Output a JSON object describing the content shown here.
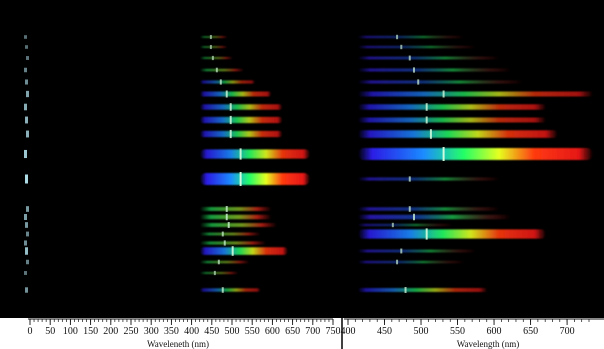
{
  "chart_data": [
    {
      "type": "spectra-image",
      "panel": "left",
      "xlabel": "Waveleneth (nm)",
      "xlim": [
        0,
        750
      ],
      "ticks": [
        0,
        50,
        100,
        150,
        200,
        250,
        300,
        350,
        400,
        450,
        500,
        550,
        600,
        650,
        700,
        750
      ]
    },
    {
      "type": "spectra-image",
      "panel": "right",
      "xlabel": "Wavelength (nm)",
      "xlim": [
        400,
        730
      ],
      "ticks": [
        400,
        450,
        500,
        550,
        600,
        650,
        700
      ]
    }
  ],
  "colors": {
    "background": "#000000",
    "axis_background": "#ffffff",
    "axis_ink": "#111111",
    "blue": "#2a1cff",
    "green": "#22ff66",
    "red": "#ff1a1a",
    "zero_order": "#bff3ff"
  },
  "left_bands": [
    {
      "i": 0.1,
      "w": 0.25,
      "c": "gr"
    },
    {
      "i": 0.1,
      "w": 0.25,
      "c": "gr"
    },
    {
      "i": 0.15,
      "w": 0.3,
      "c": "gr"
    },
    {
      "i": 0.25,
      "w": 0.4,
      "c": "gr"
    },
    {
      "i": 0.35,
      "w": 0.5,
      "c": "bgr"
    },
    {
      "i": 0.55,
      "w": 0.65,
      "c": "bgr"
    },
    {
      "i": 0.6,
      "w": 0.75,
      "c": "bgr"
    },
    {
      "i": 0.65,
      "w": 0.75,
      "c": "bgr"
    },
    {
      "i": 0.65,
      "w": 0.75,
      "c": "bgr"
    },
    {
      "i": 0.85,
      "w": 1.0,
      "c": "bgr"
    },
    {
      "i": 1.0,
      "w": 1.0,
      "c": "bgr"
    },
    {
      "i": 0.45,
      "w": 0.65,
      "c": "gr"
    },
    {
      "i": 0.5,
      "w": 0.65,
      "c": "gr"
    },
    {
      "i": 0.45,
      "w": 0.7,
      "c": "gr"
    },
    {
      "i": 0.3,
      "w": 0.55,
      "c": "gr"
    },
    {
      "i": 0.35,
      "w": 0.6,
      "c": "gr"
    },
    {
      "i": 0.75,
      "w": 0.8,
      "c": "bgr"
    },
    {
      "i": 0.25,
      "w": 0.45,
      "c": "gr"
    },
    {
      "i": 0.15,
      "w": 0.35,
      "c": "gr"
    },
    {
      "i": 0.4,
      "w": 0.55,
      "c": "bgr"
    }
  ],
  "right_bands": [
    {
      "i": 0.2,
      "w": 0.45,
      "c": "bg"
    },
    {
      "i": 0.2,
      "w": 0.5,
      "c": "bg"
    },
    {
      "i": 0.3,
      "w": 0.6,
      "c": "bg"
    },
    {
      "i": 0.35,
      "w": 0.65,
      "c": "bg"
    },
    {
      "i": 0.35,
      "w": 0.7,
      "c": "bg"
    },
    {
      "i": 0.55,
      "w": 1.0,
      "c": "bgr"
    },
    {
      "i": 0.6,
      "w": 0.8,
      "c": "bgr"
    },
    {
      "i": 0.55,
      "w": 0.8,
      "c": "bgr"
    },
    {
      "i": 0.75,
      "w": 0.85,
      "c": "bgr"
    },
    {
      "i": 1.0,
      "w": 1.0,
      "c": "bgr"
    },
    {
      "i": 0.35,
      "w": 0.6,
      "c": "bg"
    },
    {
      "i": 0.4,
      "w": 0.6,
      "c": "bg"
    },
    {
      "i": 0.5,
      "w": 0.65,
      "c": "bg"
    },
    {
      "i": 0.2,
      "w": 0.4,
      "c": "bg"
    },
    {
      "i": 0.85,
      "w": 0.8,
      "c": "bgr"
    },
    {
      "i": 0.3,
      "w": 0.5,
      "c": "bg"
    },
    {
      "i": 0.25,
      "w": 0.45,
      "c": "bg"
    },
    {
      "i": 0.45,
      "w": 0.55,
      "c": "bgr"
    }
  ]
}
